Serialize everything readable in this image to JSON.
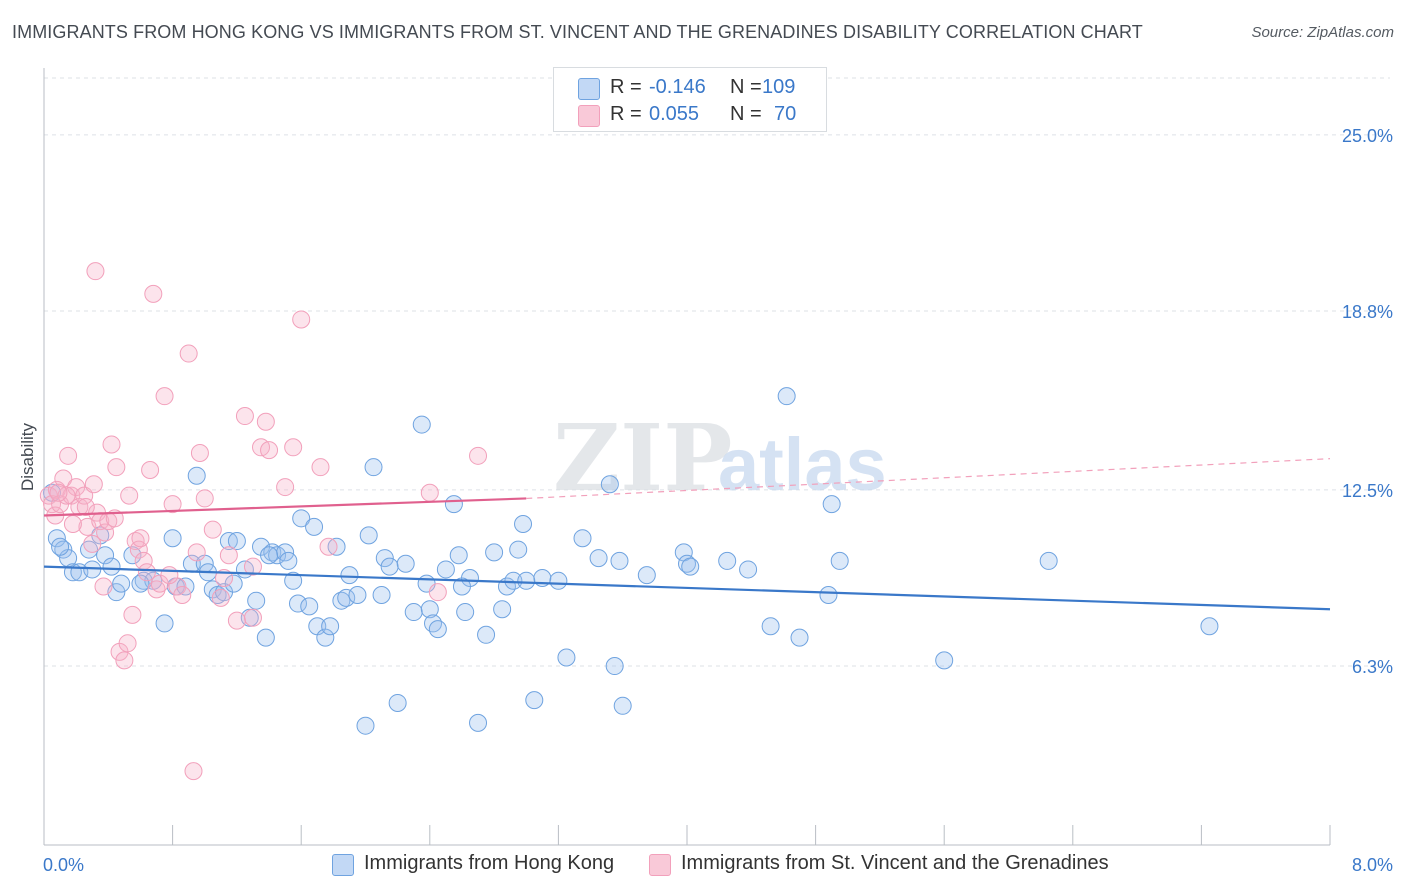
{
  "header": {
    "title": "IMMIGRANTS FROM HONG KONG VS IMMIGRANTS FROM ST. VINCENT AND THE GRENADINES DISABILITY CORRELATION CHART",
    "source": "Source: ZipAtlas.com"
  },
  "legend": {
    "rows": [
      {
        "r_label": "R =",
        "r_value": "-0.146",
        "n_label": "N =",
        "n_value": "109"
      },
      {
        "r_label": "R =",
        "r_value": "0.055",
        "n_label": "N =",
        "n_value": "70"
      }
    ]
  },
  "watermark": {
    "zip": "ZIP",
    "atlas": "atlas"
  },
  "chart_data": {
    "type": "scatter",
    "title": "IMMIGRANTS FROM HONG KONG VS IMMIGRANTS FROM ST. VINCENT AND THE GRENADINES DISABILITY CORRELATION CHART",
    "xlabel": "",
    "ylabel": "Disability",
    "xlim": [
      0.0,
      8.0
    ],
    "ylim": [
      0.0,
      27.0
    ],
    "x_tick_labels": [
      "0.0%",
      "8.0%"
    ],
    "y_ticks": [
      6.3,
      12.5,
      18.8,
      25.0
    ],
    "y_tick_labels": [
      "6.3%",
      "12.5%",
      "18.8%",
      "25.0%"
    ],
    "grid": true,
    "legend_position": "top-center",
    "series": [
      {
        "name": "Immigrants from Hong Kong",
        "color": "#6fa3e0",
        "line_color": "#3a78c9",
        "r": -0.146,
        "n": 109,
        "trend": {
          "x": [
            0.0,
            8.0
          ],
          "y": [
            9.8,
            8.3
          ]
        },
        "points": [
          [
            0.05,
            12.4
          ],
          [
            0.08,
            10.8
          ],
          [
            0.12,
            10.4
          ],
          [
            0.15,
            10.1
          ],
          [
            0.18,
            9.6
          ],
          [
            0.22,
            9.6
          ],
          [
            0.28,
            10.4
          ],
          [
            0.35,
            10.9
          ],
          [
            0.38,
            10.2
          ],
          [
            0.42,
            9.8
          ],
          [
            0.45,
            8.9
          ],
          [
            0.48,
            9.2
          ],
          [
            0.55,
            10.2
          ],
          [
            0.62,
            9.3
          ],
          [
            0.68,
            9.3
          ],
          [
            0.75,
            7.8
          ],
          [
            0.8,
            10.8
          ],
          [
            0.82,
            9.1
          ],
          [
            0.88,
            9.1
          ],
          [
            0.92,
            9.9
          ],
          [
            0.95,
            13.0
          ],
          [
            1.0,
            9.9
          ],
          [
            1.02,
            9.6
          ],
          [
            1.05,
            9.0
          ],
          [
            1.08,
            8.8
          ],
          [
            1.12,
            8.9
          ],
          [
            1.15,
            10.7
          ],
          [
            1.18,
            9.2
          ],
          [
            1.2,
            10.7
          ],
          [
            1.25,
            9.7
          ],
          [
            1.28,
            8.0
          ],
          [
            1.32,
            8.6
          ],
          [
            1.35,
            10.5
          ],
          [
            1.38,
            7.3
          ],
          [
            1.42,
            10.3
          ],
          [
            1.45,
            10.2
          ],
          [
            1.5,
            10.3
          ],
          [
            1.52,
            10.0
          ],
          [
            1.58,
            8.5
          ],
          [
            1.6,
            11.5
          ],
          [
            1.65,
            8.4
          ],
          [
            1.68,
            11.2
          ],
          [
            1.7,
            7.7
          ],
          [
            1.75,
            7.3
          ],
          [
            1.78,
            7.7
          ],
          [
            1.82,
            10.5
          ],
          [
            1.85,
            8.6
          ],
          [
            1.88,
            8.7
          ],
          [
            1.9,
            9.5
          ],
          [
            1.95,
            8.8
          ],
          [
            2.0,
            4.2
          ],
          [
            2.02,
            10.9
          ],
          [
            2.05,
            13.3
          ],
          [
            2.1,
            8.8
          ],
          [
            2.12,
            10.1
          ],
          [
            2.15,
            9.8
          ],
          [
            2.2,
            5.0
          ],
          [
            2.25,
            9.9
          ],
          [
            2.3,
            8.2
          ],
          [
            2.35,
            14.8
          ],
          [
            2.38,
            9.2
          ],
          [
            2.4,
            8.3
          ],
          [
            2.42,
            7.8
          ],
          [
            2.45,
            7.6
          ],
          [
            2.5,
            9.7
          ],
          [
            2.55,
            12.0
          ],
          [
            2.58,
            10.2
          ],
          [
            2.62,
            8.2
          ],
          [
            2.65,
            9.4
          ],
          [
            2.7,
            4.3
          ],
          [
            2.75,
            7.4
          ],
          [
            2.8,
            10.3
          ],
          [
            2.85,
            8.3
          ],
          [
            2.88,
            9.1
          ],
          [
            2.92,
            9.3
          ],
          [
            2.95,
            10.4
          ],
          [
            2.98,
            11.3
          ],
          [
            3.05,
            5.1
          ],
          [
            3.1,
            9.4
          ],
          [
            3.2,
            9.3
          ],
          [
            3.25,
            6.6
          ],
          [
            3.35,
            10.8
          ],
          [
            3.45,
            10.1
          ],
          [
            3.52,
            12.7
          ],
          [
            3.55,
            6.3
          ],
          [
            3.58,
            10.0
          ],
          [
            3.6,
            4.9
          ],
          [
            3.75,
            9.5
          ],
          [
            3.98,
            10.3
          ],
          [
            4.0,
            9.9
          ],
          [
            4.02,
            9.8
          ],
          [
            4.25,
            10.0
          ],
          [
            4.38,
            9.7
          ],
          [
            4.52,
            7.7
          ],
          [
            4.62,
            15.8
          ],
          [
            4.7,
            7.3
          ],
          [
            4.88,
            8.8
          ],
          [
            4.95,
            10.0
          ],
          [
            4.9,
            12.0
          ],
          [
            5.6,
            6.5
          ],
          [
            6.25,
            10.0
          ],
          [
            7.25,
            7.7
          ],
          [
            0.1,
            10.5
          ],
          [
            0.3,
            9.7
          ],
          [
            0.6,
            9.2
          ],
          [
            1.4,
            10.2
          ],
          [
            2.6,
            9.1
          ],
          [
            3.0,
            9.3
          ],
          [
            1.55,
            9.3
          ]
        ]
      },
      {
        "name": "Immigrants from St. Vincent and the Grenadines",
        "color": "#f2a0bb",
        "line_color": "#e0608e",
        "r": 0.055,
        "n": 70,
        "trend": {
          "x": [
            0.0,
            3.0
          ],
          "y": [
            11.6,
            12.2
          ]
        },
        "trend_dashed": {
          "x": [
            3.0,
            8.0
          ],
          "y": [
            12.2,
            13.6
          ]
        },
        "points": [
          [
            0.03,
            12.3
          ],
          [
            0.05,
            12.0
          ],
          [
            0.07,
            11.6
          ],
          [
            0.08,
            12.5
          ],
          [
            0.1,
            12.0
          ],
          [
            0.12,
            12.9
          ],
          [
            0.15,
            13.7
          ],
          [
            0.17,
            12.3
          ],
          [
            0.2,
            12.6
          ],
          [
            0.22,
            11.9
          ],
          [
            0.25,
            12.3
          ],
          [
            0.27,
            11.2
          ],
          [
            0.3,
            10.6
          ],
          [
            0.31,
            12.7
          ],
          [
            0.33,
            11.7
          ],
          [
            0.35,
            11.4
          ],
          [
            0.37,
            9.1
          ],
          [
            0.38,
            11.0
          ],
          [
            0.4,
            11.4
          ],
          [
            0.42,
            14.1
          ],
          [
            0.45,
            13.3
          ],
          [
            0.47,
            6.8
          ],
          [
            0.5,
            6.5
          ],
          [
            0.52,
            7.1
          ],
          [
            0.55,
            8.1
          ],
          [
            0.57,
            10.7
          ],
          [
            0.59,
            10.4
          ],
          [
            0.6,
            10.8
          ],
          [
            0.62,
            10.0
          ],
          [
            0.64,
            9.6
          ],
          [
            0.66,
            13.2
          ],
          [
            0.68,
            19.4
          ],
          [
            0.7,
            9.0
          ],
          [
            0.72,
            9.2
          ],
          [
            0.75,
            15.8
          ],
          [
            0.8,
            12.0
          ],
          [
            0.83,
            9.1
          ],
          [
            0.86,
            8.8
          ],
          [
            0.9,
            17.3
          ],
          [
            0.95,
            10.3
          ],
          [
            0.97,
            13.8
          ],
          [
            1.0,
            12.2
          ],
          [
            1.05,
            11.1
          ],
          [
            1.1,
            8.7
          ],
          [
            1.15,
            10.2
          ],
          [
            1.2,
            7.9
          ],
          [
            1.25,
            15.1
          ],
          [
            1.3,
            8.0
          ],
          [
            1.35,
            14.0
          ],
          [
            1.38,
            14.9
          ],
          [
            1.4,
            13.9
          ],
          [
            1.5,
            12.6
          ],
          [
            1.55,
            14.0
          ],
          [
            1.6,
            18.5
          ],
          [
            1.72,
            13.3
          ],
          [
            1.77,
            10.5
          ],
          [
            0.93,
            2.6
          ],
          [
            0.32,
            20.2
          ],
          [
            2.4,
            12.4
          ],
          [
            2.45,
            8.9
          ],
          [
            2.7,
            13.7
          ],
          [
            0.18,
            11.3
          ],
          [
            0.26,
            11.9
          ],
          [
            0.44,
            11.5
          ],
          [
            0.53,
            12.3
          ],
          [
            0.78,
            9.5
          ],
          [
            1.12,
            9.4
          ],
          [
            1.3,
            9.8
          ],
          [
            0.14,
            12.3
          ],
          [
            0.09,
            12.4
          ]
        ]
      }
    ]
  }
}
